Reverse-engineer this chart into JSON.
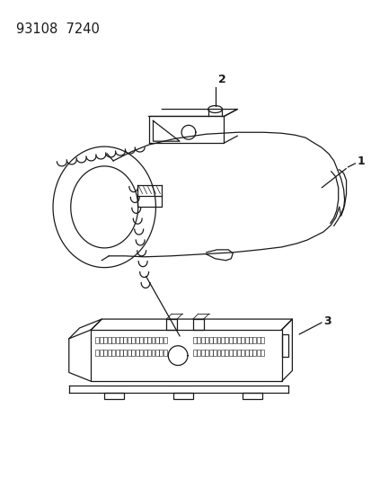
{
  "title_text": "93108  7240",
  "background_color": "#ffffff",
  "line_color": "#1a1a1a",
  "callout_1_label": "1",
  "callout_2_label": "2",
  "callout_3_label": "3",
  "title_fontsize": 10.5
}
